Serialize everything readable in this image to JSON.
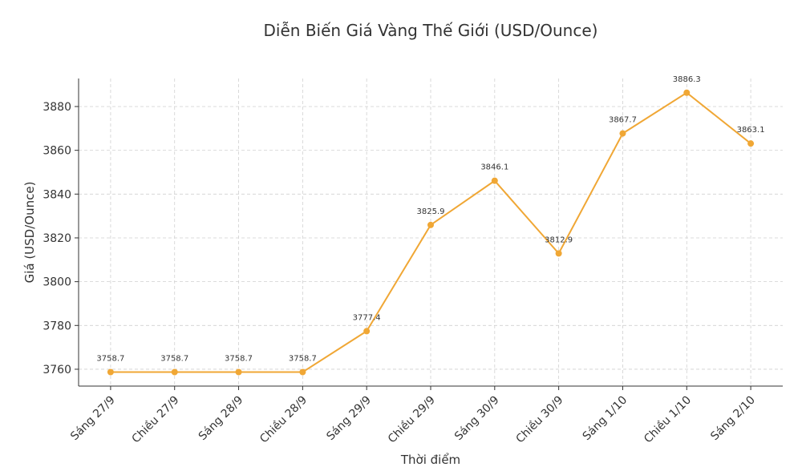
{
  "chart_data": {
    "type": "line",
    "title": "Diễn Biến Giá Vàng Thế Giới (USD/Ounce)",
    "x_label": "Thời điểm",
    "y_label": "Giá (USD/Ounce)",
    "categories": [
      "Sáng 27/9",
      "Chiều 27/9",
      "Sáng 28/9",
      "Chiều 28/9",
      "Sáng 29/9",
      "Chiều 29/9",
      "Sáng 30/9",
      "Chiều 30/9",
      "Sáng 1/10",
      "Chiều 1/10",
      "Sáng 2/10"
    ],
    "values": [
      3758.7,
      3758.7,
      3758.7,
      3758.7,
      3777.4,
      3825.9,
      3846.1,
      3812.9,
      3867.7,
      3886.3,
      3863.1
    ],
    "color": "#f0a735",
    "ylim": [
      3752.3,
      3892.8
    ],
    "yticks": [
      3760,
      3780,
      3800,
      3820,
      3840,
      3860,
      3880
    ],
    "grid": true
  }
}
